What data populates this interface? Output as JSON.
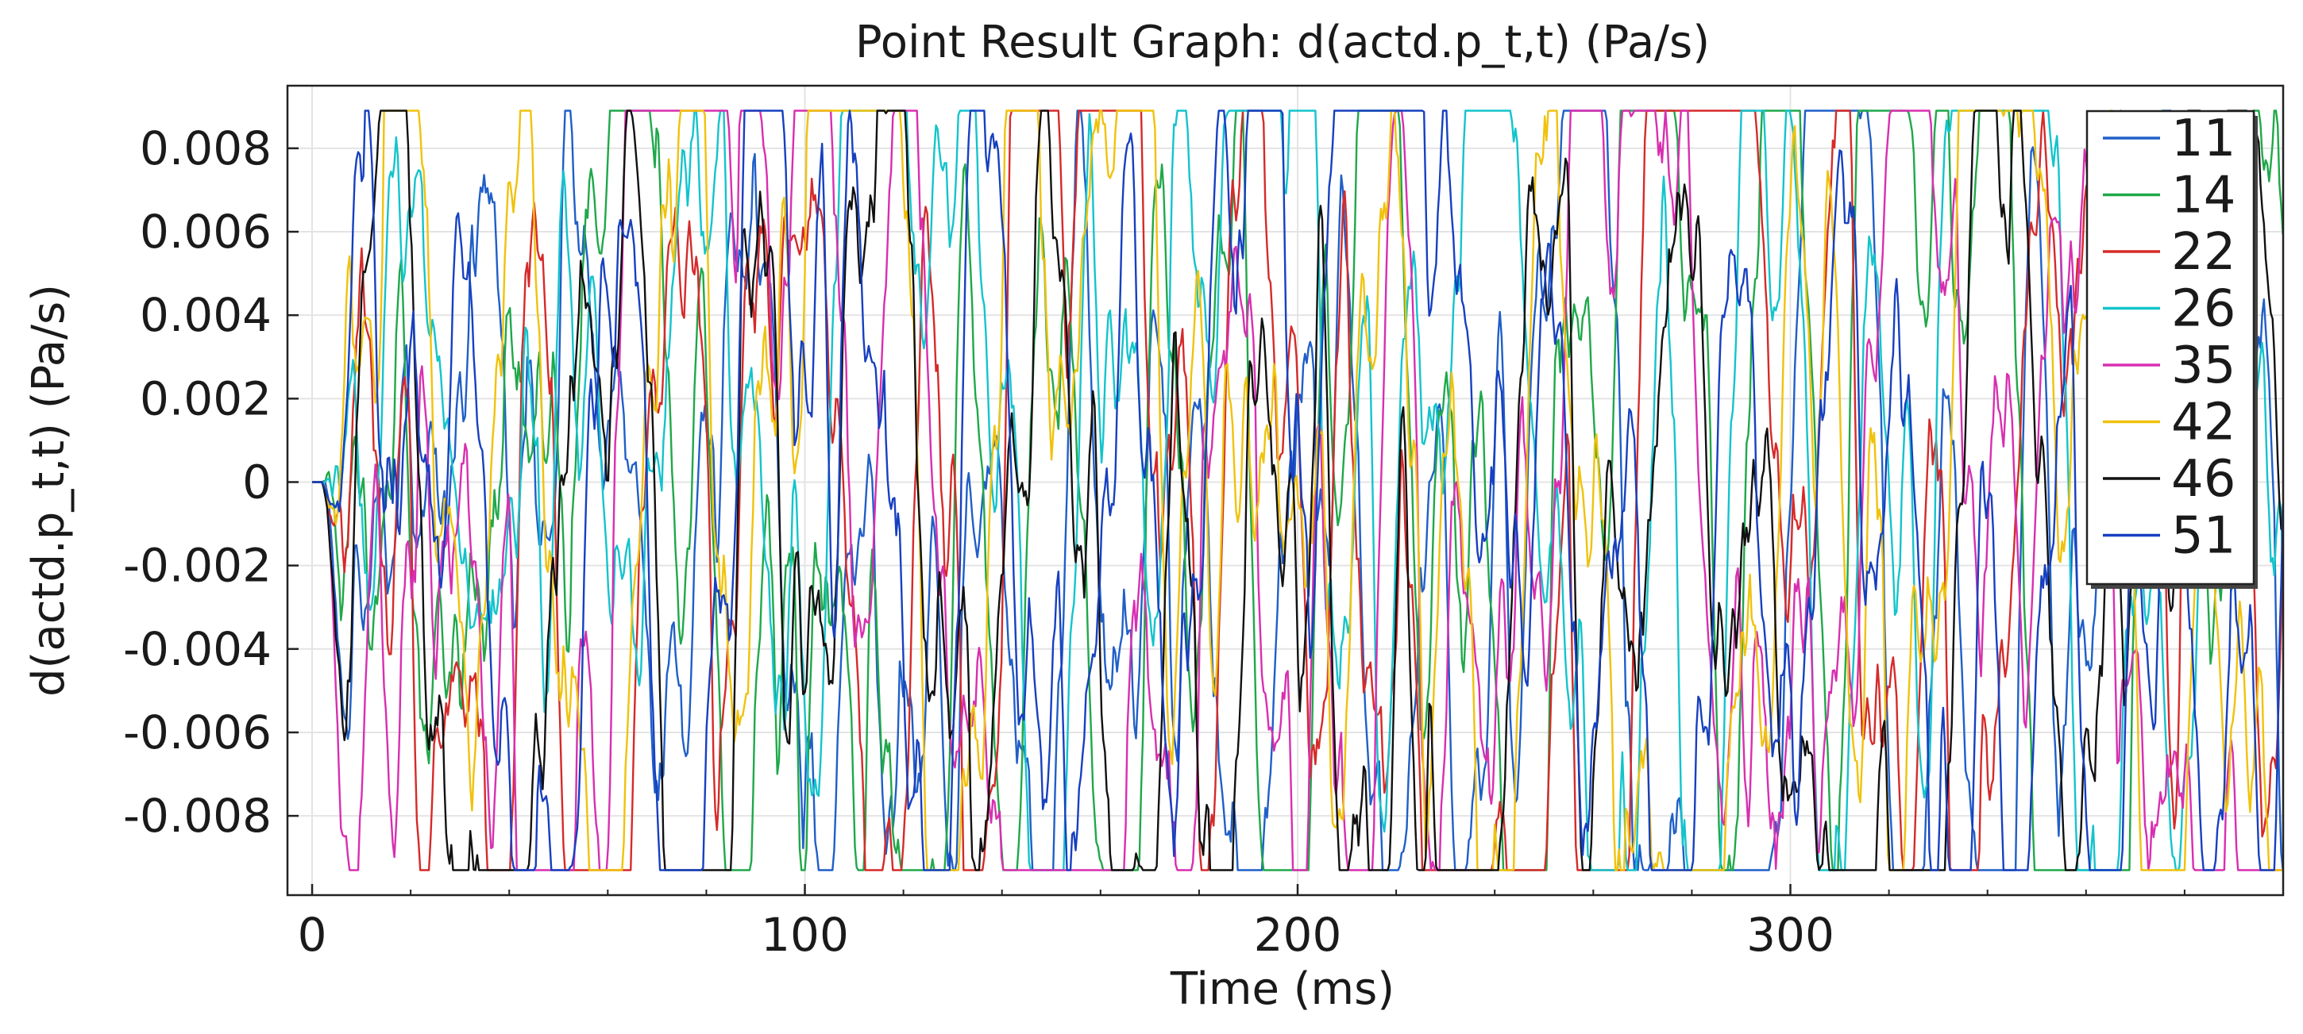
{
  "chart_data": {
    "type": "line",
    "title": "Point Result Graph: d(actd.p_t,t) (Pa/s)",
    "xlabel": "Time (ms)",
    "ylabel": "d(actd.p_t,t) (Pa/s)",
    "xlim": [
      -5,
      400
    ],
    "ylim": [
      -0.0099,
      0.0095
    ],
    "x_ticks": [
      0,
      100,
      200,
      300
    ],
    "x_tick_labels": [
      "0",
      "100",
      "200",
      "300"
    ],
    "y_ticks": [
      -0.008,
      -0.006,
      -0.004,
      -0.002,
      0,
      0.002,
      0.004,
      0.006,
      0.008
    ],
    "y_tick_labels": [
      "-0.008",
      "-0.006",
      "-0.004",
      "-0.002",
      "0",
      "0.002",
      "0.004",
      "0.006",
      "0.008"
    ],
    "grid": true,
    "legend_position": "top-right",
    "time_start_ms": 2,
    "time_end_ms": 400,
    "series": [
      {
        "name": "11",
        "color": "#1f5fc8"
      },
      {
        "name": "14",
        "color": "#1fa84a"
      },
      {
        "name": "22",
        "color": "#d62a2a"
      },
      {
        "name": "26",
        "color": "#13c4cc"
      },
      {
        "name": "35",
        "color": "#d82fb0"
      },
      {
        "name": "42",
        "color": "#f0c20c"
      },
      {
        "name": "46",
        "color": "#111111"
      },
      {
        "name": "51",
        "color": "#1740c0"
      }
    ]
  }
}
